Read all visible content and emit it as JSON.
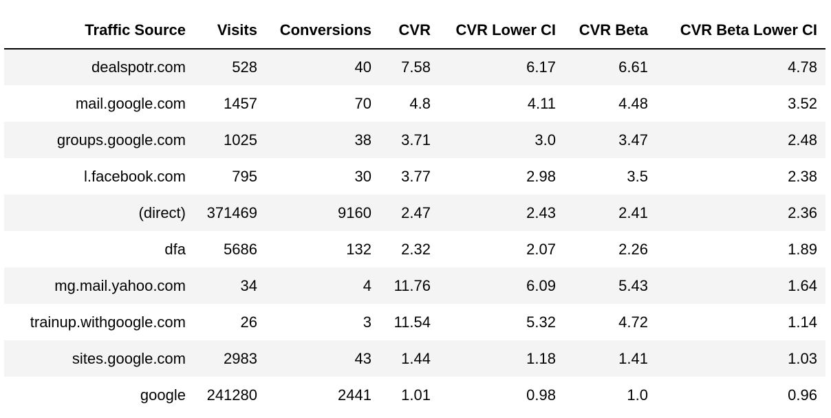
{
  "table": {
    "columns": [
      "Traffic Source",
      "Visits",
      "Conversions",
      "CVR",
      "CVR Lower CI",
      "CVR Beta",
      "CVR Beta Lower CI"
    ],
    "rows": [
      [
        "dealspotr.com",
        "528",
        "40",
        "7.58",
        "6.17",
        "6.61",
        "4.78"
      ],
      [
        "mail.google.com",
        "1457",
        "70",
        "4.8",
        "4.11",
        "4.48",
        "3.52"
      ],
      [
        "groups.google.com",
        "1025",
        "38",
        "3.71",
        "3.0",
        "3.47",
        "2.48"
      ],
      [
        "l.facebook.com",
        "795",
        "30",
        "3.77",
        "2.98",
        "3.5",
        "2.38"
      ],
      [
        "(direct)",
        "371469",
        "9160",
        "2.47",
        "2.43",
        "2.41",
        "2.36"
      ],
      [
        "dfa",
        "5686",
        "132",
        "2.32",
        "2.07",
        "2.26",
        "1.89"
      ],
      [
        "mg.mail.yahoo.com",
        "34",
        "4",
        "11.76",
        "6.09",
        "5.43",
        "1.64"
      ],
      [
        "trainup.withgoogle.com",
        "26",
        "3",
        "11.54",
        "5.32",
        "4.72",
        "1.14"
      ],
      [
        "sites.google.com",
        "2983",
        "43",
        "1.44",
        "1.18",
        "1.41",
        "1.03"
      ],
      [
        "google",
        "241280",
        "2441",
        "1.01",
        "0.98",
        "1.0",
        "0.96"
      ]
    ]
  }
}
